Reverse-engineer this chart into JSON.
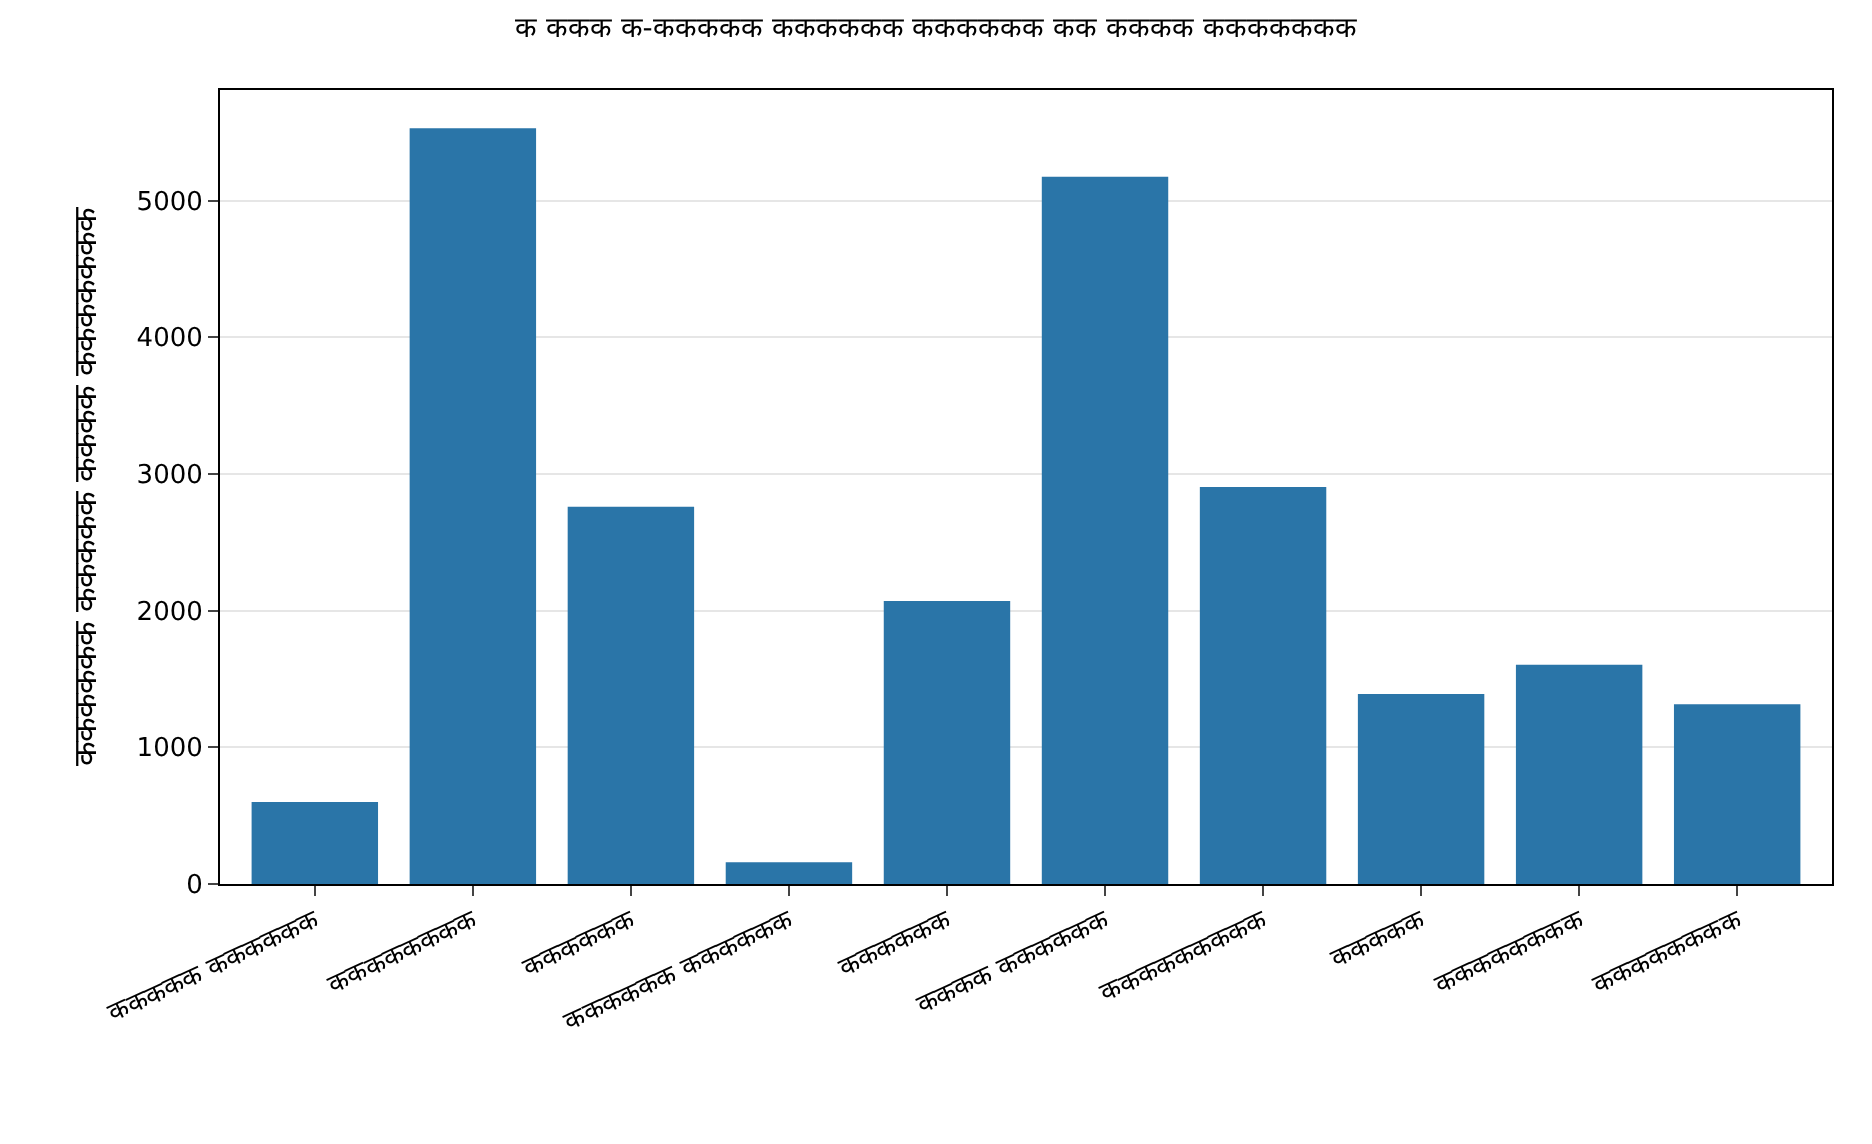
{
  "chart_data": {
    "type": "bar",
    "title": "क ककक क-ककककक कककककक कककककक कक कककक ककककककक",
    "ylabel": "कककककक ककककक कककक ककककककक",
    "categories": [
      "ककककक कककककक",
      "कककककककक",
      "कककककक",
      "कककककक कककककक",
      "कककककक",
      "कककक कककककक",
      "ककककककककक",
      "ककककक",
      "कककककककक",
      "कककककककक"
    ],
    "values": [
      600,
      5530,
      2760,
      160,
      2070,
      5175,
      2905,
      1390,
      1605,
      1315
    ],
    "color": "#2a75a8",
    "ylim": [
      0,
      5810
    ],
    "yticks": [
      0,
      1000,
      2000,
      3000,
      4000,
      5000
    ],
    "grid": "y"
  }
}
